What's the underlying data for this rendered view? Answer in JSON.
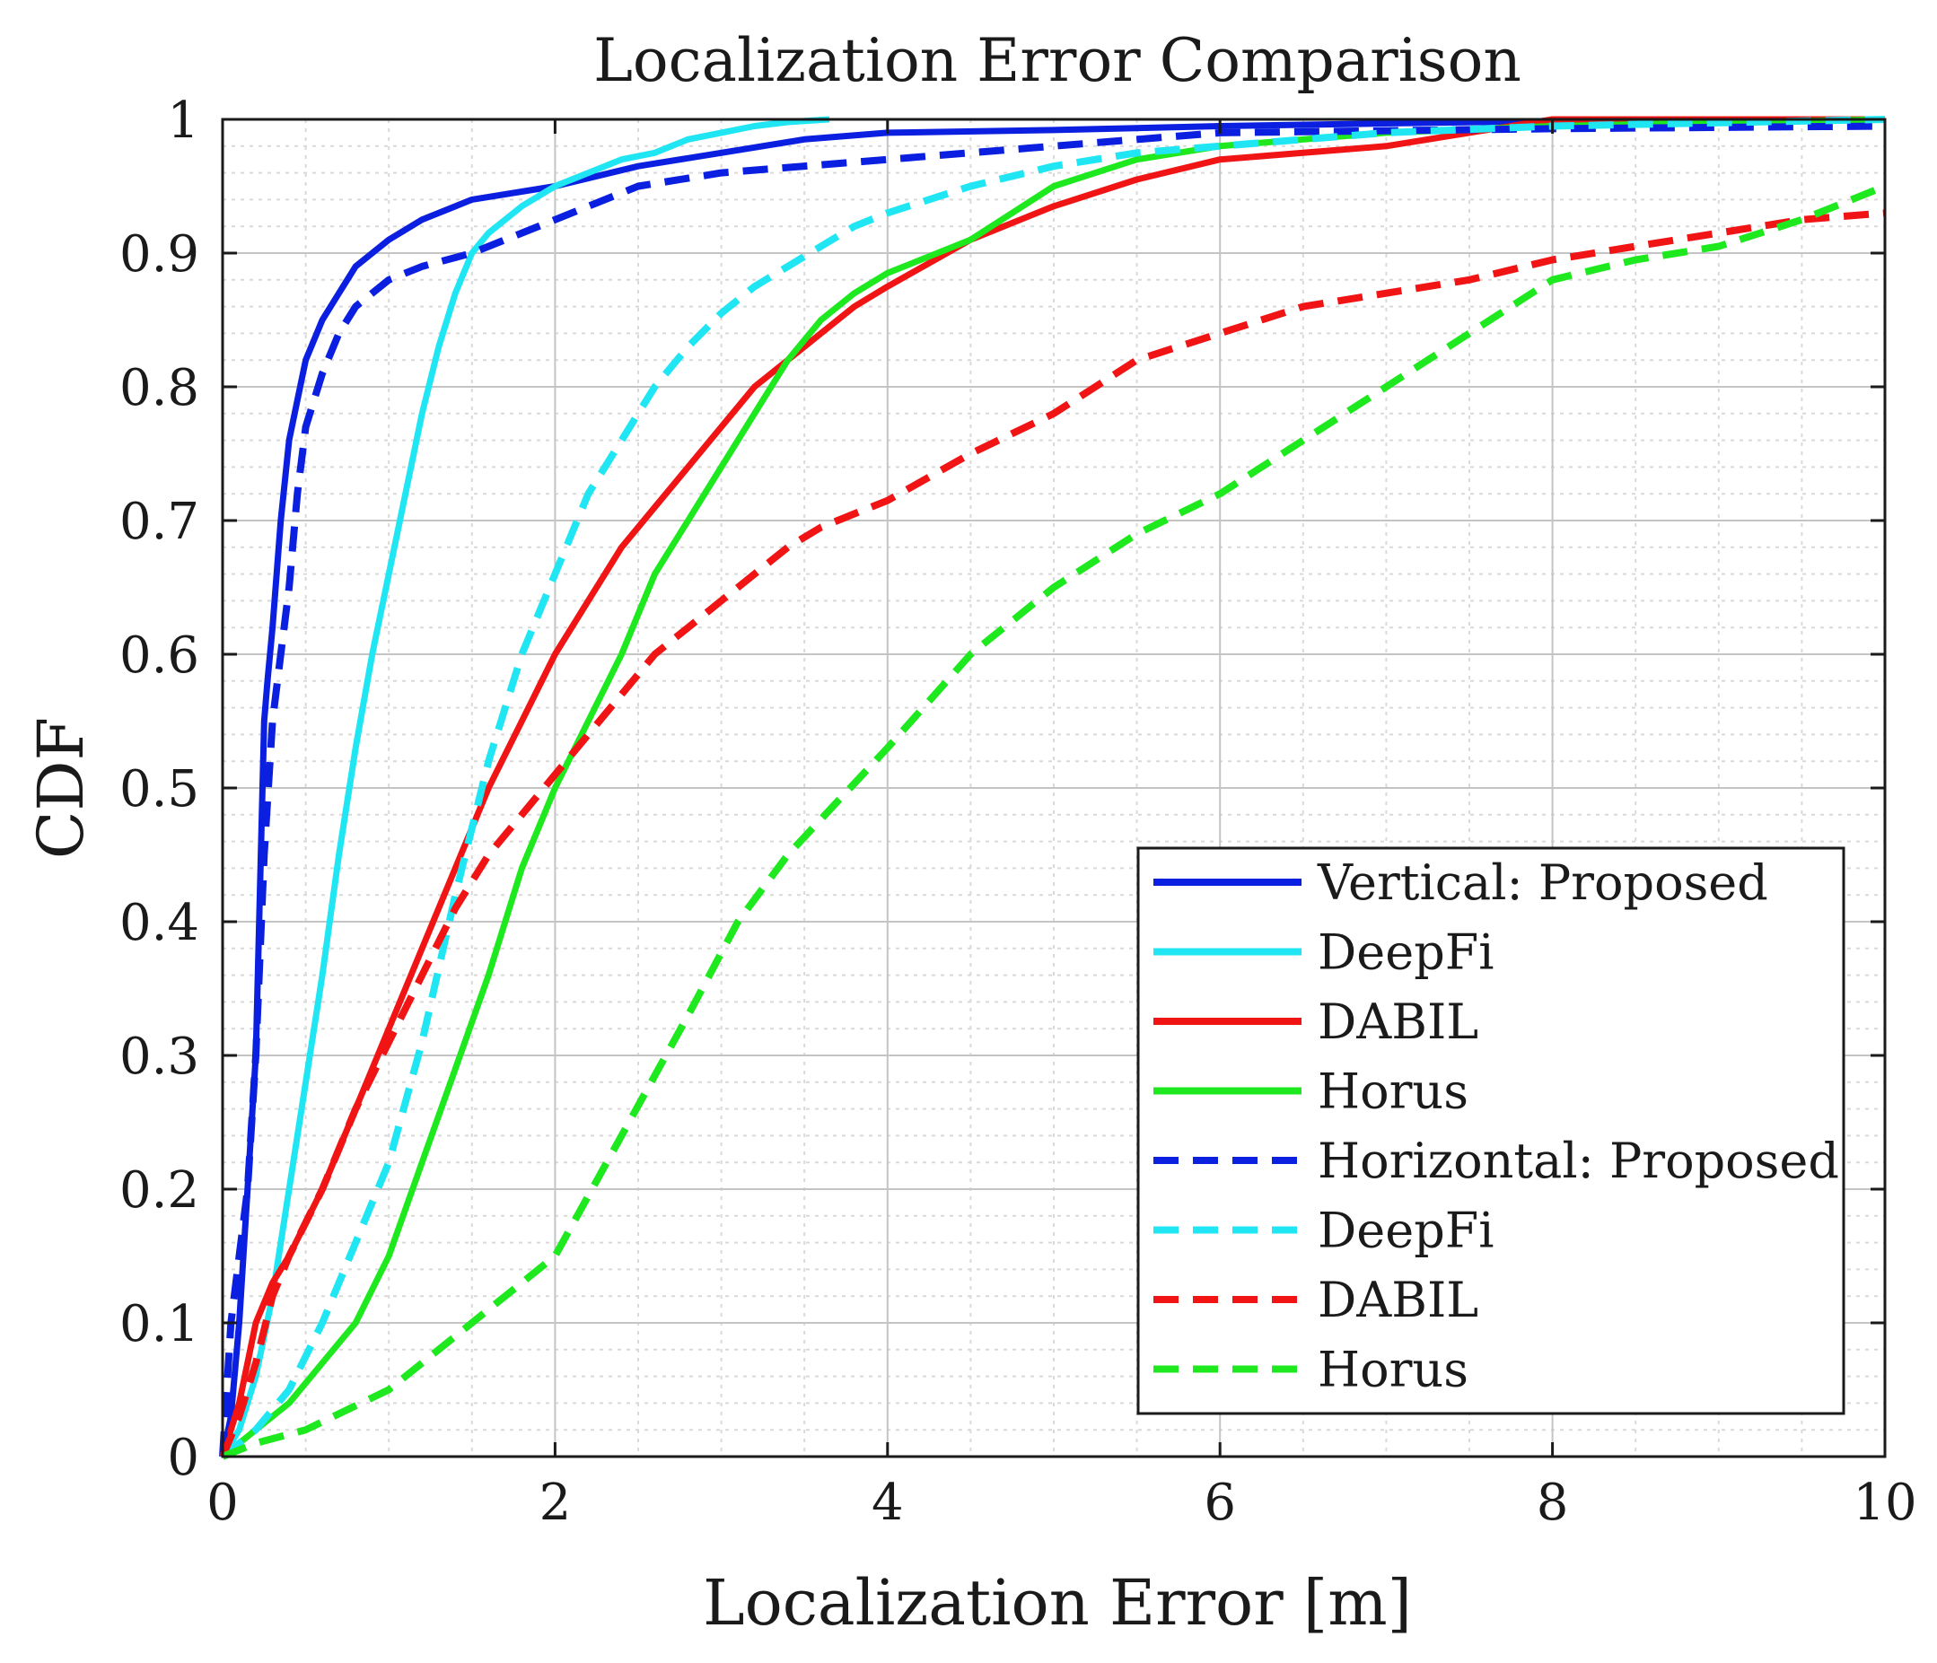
{
  "chart_data": {
    "type": "line",
    "title": "Localization Error Comparison",
    "xlabel": "Localization Error [m]",
    "ylabel": "CDF",
    "xlim": [
      0,
      10
    ],
    "ylim": [
      0,
      1
    ],
    "x_ticks": [
      "0",
      "2",
      "4",
      "6",
      "8",
      "10"
    ],
    "y_ticks": [
      "0",
      "0.1",
      "0.2",
      "0.3",
      "0.4",
      "0.5",
      "0.6",
      "0.7",
      "0.8",
      "0.9",
      "1"
    ],
    "x_tick_values": [
      0,
      2,
      4,
      6,
      8,
      10
    ],
    "y_tick_values": [
      0,
      0.1,
      0.2,
      0.3,
      0.4,
      0.5,
      0.6,
      0.7,
      0.8,
      0.9,
      1
    ],
    "grid": true,
    "minor_grid": true,
    "legend_position": "bottom-right",
    "series": [
      {
        "name": "Vertical: Proposed",
        "color": "#0a1fe0",
        "dash": "solid",
        "x": [
          0,
          0.05,
          0.1,
          0.15,
          0.2,
          0.23,
          0.25,
          0.27,
          0.3,
          0.35,
          0.4,
          0.45,
          0.5,
          0.6,
          0.7,
          0.8,
          0.9,
          1.0,
          1.2,
          1.5,
          2.0,
          2.5,
          3.0,
          3.5,
          4.0,
          5.0,
          6.0,
          7.0,
          8.7,
          10
        ],
        "y": [
          0,
          0.03,
          0.1,
          0.2,
          0.3,
          0.45,
          0.55,
          0.58,
          0.62,
          0.7,
          0.76,
          0.79,
          0.82,
          0.85,
          0.87,
          0.89,
          0.9,
          0.91,
          0.925,
          0.94,
          0.95,
          0.965,
          0.975,
          0.985,
          0.99,
          0.992,
          0.995,
          0.997,
          1.0,
          1.0
        ]
      },
      {
        "name": "DeepFi",
        "color": "#1fe6f2",
        "dash": "solid",
        "x": [
          0,
          0.1,
          0.2,
          0.3,
          0.4,
          0.5,
          0.6,
          0.7,
          0.8,
          0.9,
          1.0,
          1.1,
          1.2,
          1.3,
          1.4,
          1.5,
          1.6,
          1.8,
          2.0,
          2.2,
          2.4,
          2.6,
          2.8,
          3.0,
          3.2,
          3.4,
          3.65
        ],
        "y": [
          0,
          0.02,
          0.06,
          0.12,
          0.2,
          0.28,
          0.36,
          0.45,
          0.53,
          0.6,
          0.66,
          0.72,
          0.78,
          0.83,
          0.87,
          0.9,
          0.915,
          0.935,
          0.95,
          0.96,
          0.97,
          0.975,
          0.985,
          0.99,
          0.995,
          0.998,
          1.0
        ]
      },
      {
        "name": "DABIL",
        "color": "#f01414",
        "dash": "solid",
        "x": [
          0,
          0.1,
          0.2,
          0.3,
          0.4,
          0.6,
          0.8,
          1.0,
          1.2,
          1.4,
          1.6,
          1.8,
          2.0,
          2.2,
          2.4,
          2.6,
          2.8,
          3.0,
          3.2,
          3.4,
          3.6,
          3.8,
          4.0,
          4.5,
          5.0,
          5.5,
          6.0,
          6.5,
          7.0,
          7.5,
          8.0,
          10
        ],
        "y": [
          0,
          0.04,
          0.1,
          0.13,
          0.15,
          0.2,
          0.26,
          0.32,
          0.38,
          0.44,
          0.5,
          0.55,
          0.6,
          0.64,
          0.68,
          0.71,
          0.74,
          0.77,
          0.8,
          0.82,
          0.84,
          0.86,
          0.875,
          0.91,
          0.935,
          0.955,
          0.97,
          0.975,
          0.98,
          0.99,
          1.0,
          1.0
        ]
      },
      {
        "name": "Horus",
        "color": "#1ee81e",
        "dash": "solid",
        "x": [
          0,
          0.2,
          0.4,
          0.6,
          0.8,
          1.0,
          1.2,
          1.4,
          1.6,
          1.8,
          2.0,
          2.2,
          2.4,
          2.6,
          2.8,
          3.0,
          3.2,
          3.4,
          3.6,
          3.8,
          4.0,
          4.5,
          5.0,
          5.5,
          6.0,
          7.0,
          8.0,
          10
        ],
        "y": [
          0,
          0.02,
          0.04,
          0.07,
          0.1,
          0.15,
          0.22,
          0.29,
          0.36,
          0.44,
          0.5,
          0.55,
          0.6,
          0.66,
          0.7,
          0.74,
          0.78,
          0.82,
          0.85,
          0.87,
          0.885,
          0.91,
          0.95,
          0.97,
          0.98,
          0.99,
          0.995,
          1.0
        ]
      },
      {
        "name": "Horizontal: Proposed",
        "color": "#0a1fe0",
        "dash": "dashed",
        "x": [
          0,
          0.05,
          0.1,
          0.15,
          0.2,
          0.25,
          0.3,
          0.35,
          0.4,
          0.45,
          0.5,
          0.6,
          0.7,
          0.8,
          1.0,
          1.2,
          1.5,
          2.0,
          2.5,
          3.0,
          4.0,
          5.0,
          6.0,
          8.0,
          10
        ],
        "y": [
          0,
          0.1,
          0.15,
          0.2,
          0.3,
          0.45,
          0.55,
          0.6,
          0.65,
          0.72,
          0.77,
          0.81,
          0.84,
          0.86,
          0.88,
          0.89,
          0.9,
          0.925,
          0.95,
          0.96,
          0.97,
          0.98,
          0.99,
          0.993,
          0.995
        ]
      },
      {
        "name": "DeepFi",
        "color": "#1fe6f2",
        "dash": "dashed",
        "x": [
          0,
          0.2,
          0.4,
          0.6,
          0.8,
          1.0,
          1.2,
          1.4,
          1.6,
          1.8,
          2.0,
          2.2,
          2.4,
          2.6,
          2.8,
          3.0,
          3.2,
          3.4,
          3.6,
          3.8,
          4.0,
          4.5,
          5.0,
          5.5,
          6.0,
          7.0,
          8.0,
          10
        ],
        "y": [
          0,
          0.02,
          0.05,
          0.1,
          0.16,
          0.22,
          0.31,
          0.42,
          0.52,
          0.6,
          0.66,
          0.72,
          0.76,
          0.8,
          0.83,
          0.855,
          0.875,
          0.89,
          0.905,
          0.92,
          0.93,
          0.95,
          0.965,
          0.975,
          0.98,
          0.99,
          0.995,
          1.0
        ]
      },
      {
        "name": "DABIL",
        "color": "#f01414",
        "dash": "dashed",
        "x": [
          0,
          0.1,
          0.2,
          0.3,
          0.4,
          0.6,
          0.8,
          1.0,
          1.2,
          1.4,
          1.6,
          1.8,
          2.0,
          2.2,
          2.4,
          2.6,
          2.8,
          3.0,
          3.2,
          3.4,
          3.6,
          3.8,
          4.0,
          4.5,
          5.0,
          5.5,
          6.0,
          6.5,
          7.0,
          7.5,
          8.0,
          8.5,
          9.0,
          9.5,
          10
        ],
        "y": [
          0,
          0.03,
          0.07,
          0.12,
          0.15,
          0.2,
          0.26,
          0.31,
          0.36,
          0.41,
          0.45,
          0.48,
          0.51,
          0.54,
          0.57,
          0.6,
          0.62,
          0.64,
          0.66,
          0.68,
          0.695,
          0.705,
          0.715,
          0.75,
          0.78,
          0.82,
          0.84,
          0.86,
          0.87,
          0.88,
          0.895,
          0.905,
          0.915,
          0.925,
          0.93
        ]
      },
      {
        "name": "Horus",
        "color": "#1ee81e",
        "dash": "dashed",
        "x": [
          0,
          0.2,
          0.5,
          1.0,
          1.5,
          2.0,
          2.4,
          2.8,
          3.1,
          3.4,
          3.7,
          4.0,
          4.5,
          5.0,
          5.5,
          6.0,
          6.5,
          7.0,
          7.5,
          8.0,
          8.5,
          9.0,
          9.5,
          10
        ],
        "y": [
          0,
          0.01,
          0.02,
          0.05,
          0.1,
          0.15,
          0.24,
          0.33,
          0.4,
          0.45,
          0.49,
          0.53,
          0.6,
          0.65,
          0.69,
          0.72,
          0.76,
          0.8,
          0.84,
          0.88,
          0.895,
          0.905,
          0.925,
          0.95
        ]
      }
    ]
  }
}
